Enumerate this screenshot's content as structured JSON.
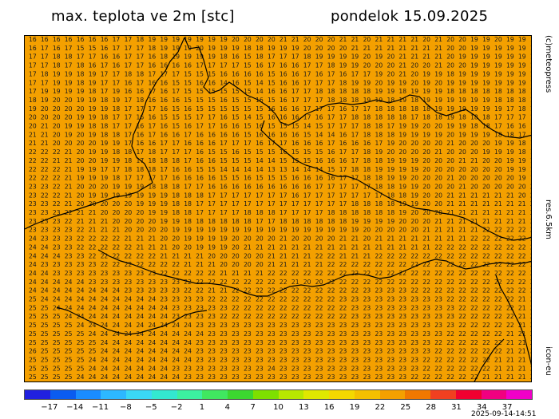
{
  "header": {
    "title_left": "max. teplota ve 2m [stc]",
    "title_right": "pondelok 15.09.2025"
  },
  "side_labels": {
    "credit": "(c)meteopress",
    "resolution": "res.6.5km",
    "model": "icon-eu"
  },
  "timestamp": "2025-09-14-14:51",
  "colors": {
    "map_fill": "#f4a000",
    "value_text": "#1a1a1a",
    "contour": "#000000"
  },
  "colorbar": {
    "colors": [
      "#2020e0",
      "#0a5cf0",
      "#1a8cff",
      "#2db8ff",
      "#3ad8f5",
      "#33e8d0",
      "#3cf0a0",
      "#40e860",
      "#3cd830",
      "#7ee000",
      "#b8e800",
      "#e0e800",
      "#f4d800",
      "#f4c000",
      "#f4a000",
      "#f07800",
      "#f04020",
      "#f00030",
      "#f00080",
      "#f000c8"
    ],
    "ticks": [
      "−17",
      "−14",
      "−11",
      "−8",
      "−5",
      "−2",
      "1",
      "4",
      "7",
      "10",
      "13",
      "16",
      "19",
      "22",
      "25",
      "28",
      "31",
      "34",
      "37"
    ]
  },
  "grid_values": [
    "16 16 16 16 16 16 16 17 17 18 19 19 19 19 19 19 19 20 20 20 20 21 21 20 20 20 21 21 20 21 21 21 21 20 21 20 20 19 19 20 19 19 19",
    "16 17 16 17 15 15 16 17 17 17 18 19 19 19 20 19 19 19 18 18 19 19 19 20 20 20 20 21 21 21 21 21 21 21 21 20 20 19 19 19 19 19 19",
    "17 17 18 18 17 17 16 16 17 17 16 18 19 19 19 19 18 16 15 18 17 17 17 18 19 19 19 19 20 19 20 21 21 21 21 20 19 19 19 19 19 19 19",
    "17 17 18 17 18 16 17 16 17 17 16 16 16 16 17 17 17 17 15 16 17 16 16 17 17 18 19 19 20 20 20 21 20 20 21 20 20 19 19 19 19 19 19",
    "17 18 19 19 18 19 17 17 18 18 17 17 17 15 15 15 16 16 16 16 15 16 16 17 16 17 16 17 17 19 20 21 20 19 19 18 19 19 19 19 19 19 19",
    "17 17 19 19 18 19 17 17 16 17 16 16 15 15 16 16 14 16 15 14 15 16 16 17 17 17 18 19 19 20 19 19 20 19 20 19 19 19 19 19 19 19 19",
    "17 19 19 19 19 18 17 19 16 16 17 16 17 15 15 15 15 15 15 14 16 16 17 17 18 18 18 18 18 19 19 18 19 19 19 18 18 18 18 18 18 18 18",
    "18 19 20 20 19 19 18 19 17 18 16 16 16 15 15 15 16 15 15 16 15 16 17 17 17 18 18 18 19 19 18 19 18 19 19 19 19 19 19 18 18 18 18",
    "19 20 20 20 20 19 19 18 17 17 17 16 15 16 15 15 15 15 15 15 16 16 16 17 17 17 16 17 17 18 18 18 18 18 19 19 19 19 19 19 17 18 18",
    "20 20 20 20 19 19 18 17 17 16 16 15 15 15 17 17 16 15 14 15 16 16 16 17 16 17 17 18 18 18 18 18 17 18 18 19 18 18 18 17 17 17 17",
    "20 21 20 19 19 18 18 17 17 16 17 16 15 16 17 17 16 16 15 16 15 15 15 14 15 17 17 17 18 18 17 19 19 20 20 19 19 18 18 17 16 16 17",
    "21 21 20 19 20 19 18 18 17 16 17 16 16 17 16 16 16 16 15 16 16 16 16 15 14 14 16 17 18 18 18 19 19 19 19 20 19 19 19 18 18 17 16",
    "21 21 20 20 20 20 19 19 17 16 16 17 17 16 16 16 17 17 17 16 17 17 16 16 16 17 16 16 16 17 19 20 20 20 20 21 20 20 20 19 19 18 16",
    "22 22 22 21 20 19 19 18 18 17 18 17 17 17 16 15 15 16 15 15 15 16 15 15 15 16 17 17 18 19 20 20 20 20 21 20 20 20 19 19 19 18 18",
    "22 22 21 21 20 20 19 19 18 17 18 18 18 17 16 16 15 15 15 14 14 15 15 15 16 16 16 17 18 18 19 19 19 20 20 20 21 21 20 20 19 19 18",
    "22 22 22 21 19 19 17 17 18 18 18 17 16 16 15 15 14 14 14 14 13 13 14 14 14 15 17 18 18 19 19 19 19 20 20 20 20 20 20 20 19 19 18",
    "22 22 22 21 19 19 19 18 17 17 17 17 16 16 16 16 15 15 16 15 15 15 16 16 16 16 17 17 18 18 19 19 20 20 20 21 20 20 20 20 20 19 19",
    "23 23 22 21 20 20 20 19 19 19 18 18 18 17 17 16 16 16 16 16 16 16 16 16 17 17 17 17 17 18 18 19 19 20 20 20 21 20 20 20 20 20 20",
    "23 22 22 21 20 19 19 19 19 19 19 19 18 18 18 17 17 17 17 17 17 17 16 17 17 17 17 17 17 17 18 18 19 20 20 21 21 21 21 21 21 20 20",
    "23 23 22 21 20 20 20 20 20 19 19 19 18 18 17 17 17 17 17 17 17 17 17 17 17 17 17 18 18 18 18 19 19 20 20 21 21 21 21 21 21 21 20",
    "23 23 23 22 21 21 20 20 20 20 19 19 18 18 17 17 17 17 18 18 18 17 17 17 17 18 18 18 18 18 18 19 20 20 20 21 21 21 21 21 21 21 21",
    "23 23 23 22 21 21 21 20 20 20 20 19 19 18 18 18 18 18 18 17 17 18 18 18 18 18 18 19 19 19 19 20 20 20 21 21 21 21 21 21 21 21 21",
    "23 23 23 23 22 21 21 21 20 20 20 20 19 19 19 19 19 19 19 19 19 19 19 19 19 19 19 19 20 20 20 20 20 21 21 21 21 21 22 22 22 22 22",
    "24 23 23 23 22 22 22 22 21 21 21 20 20 19 19 19 19 20 20 20 20 21 20 20 20 20 21 21 20 21 21 21 21 21 21 21 21 22 22 22 22 22 22",
    "24 24 23 23 22 22 22 22 22 21 21 21 20 20 19 19 19 20 21 21 21 21 21 21 21 21 21 21 21 21 21 21 21 21 22 22 22 22 22 22 22 22 22",
    "24 24 24 23 23 22 22 22 22 22 22 21 21 21 21 20 20 20 20 20 21 21 21 21 22 22 21 21 21 22 22 22 22 22 22 22 22 22 22 22 22 22 22",
    "24 23 23 23 23 23 22 22 22 22 22 22 22 21 21 21 20 20 20 20 21 21 21 21 21 22 22 22 22 22 22 22 22 22 22 22 22 22 22 22 22 22 22",
    "24 24 23 23 23 23 23 23 23 23 23 22 22 22 22 22 21 21 21 21 22 22 22 22 22 22 22 22 22 22 22 22 22 22 22 22 22 22 22 22 22 22 22",
    "24 24 24 24 24 23 23 23 23 23 23 23 23 22 22 22 22 22 22 22 22 22 21 20 20 22 22 22 22 22 22 22 22 22 22 22 22 22 22 22 22 22 22",
    "24 24 24 24 24 24 24 24 23 23 23 23 23 22 22 21 21 22 22 22 22 22 22 22 22 22 22 22 23 23 23 23 22 22 22 22 22 22 22 22 22 22 22",
    "25 24 24 24 24 24 24 24 24 24 24 23 23 23 23 22 22 22 22 22 22 22 22 22 22 22 23 23 23 23 23 23 23 23 23 22 22 22 22 22 22 21 21",
    "25 25 24 24 24 24 24 24 24 24 24 24 23 23 23 23 23 22 22 22 22 22 22 22 22 22 22 23 23 23 23 23 23 23 23 23 22 22 22 22 22 21 21",
    "25 25 25 24 24 24 24 24 24 24 24 24 23 23 23 23 22 22 22 22 22 22 22 22 22 22 22 23 23 23 23 23 23 23 23 23 22 22 22 22 22 21 21",
    "25 25 25 25 24 24 24 24 24 24 24 24 24 24 23 23 23 23 23 23 23 23 23 23 23 23 23 23 23 23 23 23 23 23 23 23 22 22 22 22 22 21 21",
    "25 25 25 25 25 24 24 24 24 24 24 24 24 24 24 23 23 23 23 23 23 23 23 23 23 23 23 23 23 23 23 23 23 23 23 22 22 22 22 22 21 21 21",
    "25 25 25 25 25 25 24 24 24 24 24 24 24 24 23 23 23 23 23 23 23 23 23 23 23 23 23 23 23 23 23 23 23 23 22 22 22 22 22 22 21 21 21",
    "26 25 25 25 25 25 24 24 24 24 24 24 24 24 23 23 23 23 23 23 23 23 23 23 23 23 23 23 23 23 23 23 23 23 22 22 22 22 22 22 21 21 21",
    "25 25 25 25 25 24 24 24 24 24 24 24 24 24 23 23 23 23 23 23 23 23 23 23 23 23 23 23 23 23 23 23 23 22 22 22 22 22 22 21 21 21 21",
    "25 25 25 25 25 24 24 24 24 24 24 24 23 23 23 23 23 23 23 23 24 23 23 23 23 23 23 23 23 23 23 23 23 22 22 22 22 22 22 21 21 21 21",
    "25 25 25 25 24 24 24 24 24 24 24 24 24 23 23 23 23 23 23 23 23 23 23 23 23 23 23 23 23 23 23 23 22 22 22 22 22 22 21 21 21 21 21"
  ]
}
